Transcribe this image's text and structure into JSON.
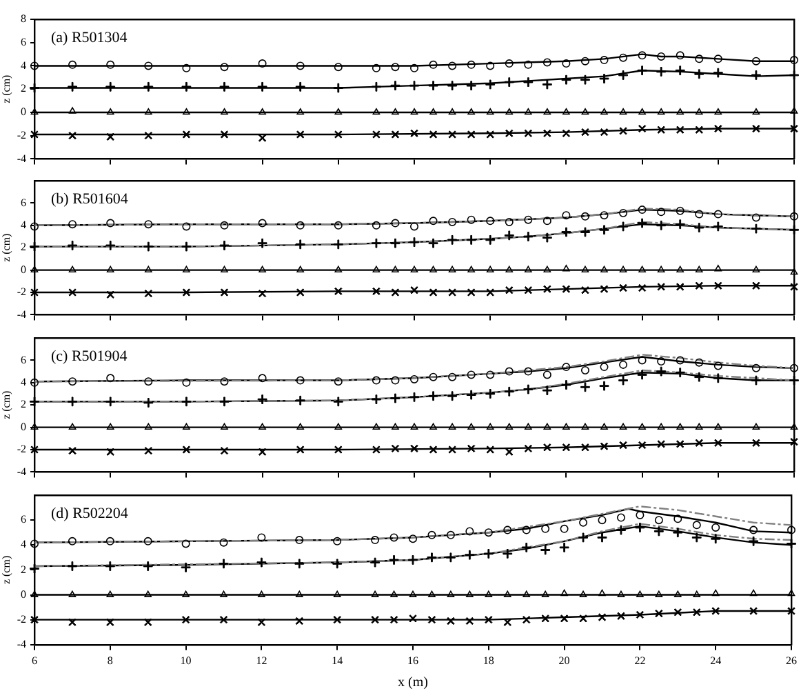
{
  "chart_data": [
    {
      "type": "scatter",
      "title": "(a) R501304",
      "ylabel": "z (cm)",
      "xlim": [
        6,
        26
      ],
      "ylim": [
        -4,
        8
      ],
      "xticks": [
        6,
        8,
        10,
        12,
        14,
        16,
        18,
        20,
        22,
        24,
        26
      ],
      "yticks": [
        -4,
        -2,
        0,
        2,
        4,
        6,
        8
      ],
      "tick_labels": "y",
      "grid": false,
      "legend": false,
      "x": [
        6,
        7,
        8,
        9,
        10,
        11,
        12,
        13,
        14,
        15,
        15.5,
        16,
        16.5,
        17,
        17.5,
        18,
        18.5,
        19,
        19.5,
        20,
        20.5,
        21,
        21.5,
        22,
        22.5,
        23,
        23.5,
        24,
        25,
        26
      ],
      "series": [
        {
          "color": "#000000",
          "marker": "circle",
          "values": [
            4.0,
            4.1,
            4.1,
            4.0,
            3.8,
            3.9,
            4.2,
            4.0,
            3.9,
            3.8,
            3.9,
            3.8,
            4.1,
            4.0,
            4.1,
            4.0,
            4.2,
            4.1,
            4.3,
            4.2,
            4.4,
            4.5,
            4.7,
            4.9,
            4.8,
            4.9,
            4.6,
            4.6,
            4.4,
            4.5
          ]
        },
        {
          "color": "#000000",
          "marker": "cross",
          "values": [
            2.1,
            2.2,
            2.2,
            2.2,
            2.2,
            2.2,
            2.2,
            2.2,
            2.1,
            2.2,
            2.3,
            2.3,
            2.3,
            2.3,
            2.3,
            2.4,
            2.6,
            2.6,
            2.4,
            2.8,
            2.8,
            2.9,
            3.2,
            3.6,
            3.5,
            3.6,
            3.3,
            3.4,
            3.2,
            3.2
          ]
        },
        {
          "color": "#000000",
          "marker": "triangle",
          "values": [
            0,
            0.1,
            0,
            0,
            0,
            0,
            0,
            0,
            0,
            0,
            0,
            0,
            0,
            0,
            0,
            0,
            0,
            0,
            0,
            0,
            0,
            0,
            0,
            0,
            0,
            0,
            0,
            0,
            0,
            0.1
          ]
        },
        {
          "color": "#000000",
          "marker": "x",
          "values": [
            -1.9,
            -2.0,
            -2.1,
            -2.0,
            -1.9,
            -1.9,
            -2.2,
            -1.9,
            -1.9,
            -1.9,
            -1.9,
            -1.8,
            -1.9,
            -1.9,
            -1.9,
            -1.9,
            -1.8,
            -1.8,
            -1.8,
            -1.8,
            -1.7,
            -1.7,
            -1.6,
            -1.4,
            -1.5,
            -1.5,
            -1.5,
            -1.4,
            -1.4,
            -1.4
          ]
        },
        {
          "type": "line",
          "color": "#000000",
          "marker": "none",
          "line_style": "solid",
          "x": [
            6,
            10,
            12,
            14,
            16,
            18,
            20,
            21,
            22,
            22.5,
            23,
            24,
            25,
            26
          ],
          "values": [
            4.0,
            4.0,
            4.0,
            4.0,
            4.0,
            4.2,
            4.4,
            4.6,
            5.0,
            4.8,
            4.8,
            4.6,
            4.4,
            4.4
          ]
        },
        {
          "type": "line",
          "color": "#000000",
          "marker": "none",
          "line_style": "solid",
          "x": [
            6,
            10,
            14,
            15,
            16,
            17,
            18,
            19,
            20,
            21,
            22,
            23,
            24,
            25,
            26
          ],
          "values": [
            2.1,
            2.1,
            2.1,
            2.2,
            2.3,
            2.4,
            2.5,
            2.7,
            2.9,
            3.1,
            3.6,
            3.5,
            3.3,
            3.1,
            3.2
          ]
        },
        {
          "type": "line",
          "color": "#000000",
          "marker": "none",
          "line_style": "solid",
          "x": [
            6,
            26
          ],
          "values": [
            0,
            0
          ]
        },
        {
          "type": "line",
          "color": "#000000",
          "marker": "none",
          "line_style": "solid",
          "x": [
            6,
            10,
            14,
            18,
            20,
            22,
            24,
            26
          ],
          "values": [
            -1.9,
            -1.9,
            -1.9,
            -1.8,
            -1.7,
            -1.5,
            -1.4,
            -1.4
          ]
        }
      ]
    },
    {
      "type": "scatter",
      "title": "(b) R501604",
      "ylabel": "z (cm)",
      "xlim": [
        6,
        26
      ],
      "ylim": [
        -4,
        8
      ],
      "xticks": [
        6,
        8,
        10,
        12,
        14,
        16,
        18,
        20,
        22,
        24,
        26
      ],
      "yticks": [
        -4,
        -2,
        0,
        2,
        4,
        6
      ],
      "tick_labels": "y",
      "grid": false,
      "legend": false,
      "x": [
        6,
        7,
        8,
        9,
        10,
        11,
        12,
        13,
        14,
        15,
        15.5,
        16,
        16.5,
        17,
        17.5,
        18,
        18.5,
        19,
        19.5,
        20,
        20.5,
        21,
        21.5,
        22,
        22.5,
        23,
        23.5,
        24,
        25,
        26
      ],
      "series": [
        {
          "color": "#000000",
          "marker": "circle",
          "values": [
            3.9,
            4.1,
            4.2,
            4.1,
            3.9,
            4.0,
            4.2,
            4.0,
            4.0,
            4.0,
            4.2,
            3.9,
            4.4,
            4.3,
            4.5,
            4.4,
            4.3,
            4.5,
            4.4,
            4.9,
            4.8,
            4.9,
            5.1,
            5.4,
            5.2,
            5.3,
            5.0,
            5.0,
            4.7,
            4.8
          ]
        },
        {
          "color": "#000000",
          "marker": "cross",
          "values": [
            2.1,
            2.2,
            2.2,
            2.1,
            2.1,
            2.2,
            2.4,
            2.3,
            2.3,
            2.4,
            2.4,
            2.5,
            2.4,
            2.7,
            2.7,
            2.7,
            3.1,
            3.0,
            2.9,
            3.4,
            3.4,
            3.6,
            3.9,
            4.2,
            4.0,
            4.1,
            3.8,
            3.9,
            3.7,
            3.6
          ]
        },
        {
          "color": "#000000",
          "marker": "triangle",
          "values": [
            0,
            0,
            0,
            0,
            0,
            0,
            0,
            0,
            0,
            0,
            0,
            0,
            0,
            0,
            0,
            0,
            0,
            0,
            0,
            0.1,
            0,
            0,
            0,
            0,
            0,
            0,
            0,
            0.1,
            0,
            -0.2
          ]
        },
        {
          "color": "#000000",
          "marker": "x",
          "values": [
            -2.0,
            -2.0,
            -2.2,
            -2.1,
            -2.0,
            -2.0,
            -2.1,
            -2.0,
            -1.9,
            -1.9,
            -2.0,
            -1.8,
            -2.0,
            -2.0,
            -2.0,
            -2.0,
            -1.8,
            -1.8,
            -1.7,
            -1.7,
            -1.8,
            -1.7,
            -1.6,
            -1.6,
            -1.5,
            -1.5,
            -1.4,
            -1.4,
            -1.4,
            -1.5
          ]
        },
        {
          "type": "line",
          "color": "#808080",
          "marker": "none",
          "line_style": "dashed",
          "x": [
            6,
            10,
            14,
            16,
            18,
            20,
            21,
            22,
            23,
            24,
            25,
            26
          ],
          "values": [
            4.0,
            4.1,
            4.1,
            4.2,
            4.4,
            4.7,
            5.0,
            5.5,
            5.4,
            5.0,
            4.9,
            4.8
          ]
        },
        {
          "type": "line",
          "color": "#808080",
          "marker": "none",
          "line_style": "dashed",
          "x": [
            6,
            10,
            14,
            16,
            18,
            19,
            20,
            21,
            22,
            23,
            24,
            25,
            26
          ],
          "values": [
            2.1,
            2.1,
            2.3,
            2.5,
            2.8,
            3.0,
            3.3,
            3.7,
            4.3,
            4.1,
            3.8,
            3.7,
            3.6
          ]
        },
        {
          "type": "line",
          "color": "#000000",
          "marker": "none",
          "line_style": "solid",
          "x": [
            6,
            10,
            14,
            16,
            18,
            20,
            21,
            22,
            23,
            24,
            25,
            26
          ],
          "values": [
            4.0,
            4.1,
            4.1,
            4.2,
            4.4,
            4.7,
            5.0,
            5.4,
            5.3,
            5.0,
            4.9,
            4.8
          ]
        },
        {
          "type": "line",
          "color": "#000000",
          "marker": "none",
          "line_style": "solid",
          "x": [
            6,
            10,
            14,
            16,
            18,
            19,
            20,
            21,
            22,
            23,
            24,
            25,
            26
          ],
          "values": [
            2.1,
            2.1,
            2.3,
            2.5,
            2.8,
            3.0,
            3.3,
            3.7,
            4.1,
            4.0,
            3.8,
            3.7,
            3.6
          ]
        },
        {
          "type": "line",
          "color": "#000000",
          "marker": "none",
          "line_style": "solid",
          "x": [
            6,
            26
          ],
          "values": [
            0,
            0
          ]
        },
        {
          "type": "line",
          "color": "#000000",
          "marker": "none",
          "line_style": "solid",
          "x": [
            6,
            10,
            14,
            18,
            20,
            22,
            24,
            26
          ],
          "values": [
            -2.0,
            -2.0,
            -1.9,
            -1.9,
            -1.7,
            -1.5,
            -1.4,
            -1.4
          ]
        }
      ]
    },
    {
      "type": "scatter",
      "title": "(c) R501904",
      "ylabel": "z (cm)",
      "xlim": [
        6,
        26
      ],
      "ylim": [
        -4,
        8
      ],
      "xticks": [
        6,
        8,
        10,
        12,
        14,
        16,
        18,
        20,
        22,
        24,
        26
      ],
      "yticks": [
        -4,
        -2,
        0,
        2,
        4,
        6
      ],
      "tick_labels": "y",
      "grid": false,
      "legend": false,
      "x": [
        6,
        7,
        8,
        9,
        10,
        11,
        12,
        13,
        14,
        15,
        15.5,
        16,
        16.5,
        17,
        17.5,
        18,
        18.5,
        19,
        19.5,
        20,
        20.5,
        21,
        21.5,
        22,
        22.5,
        23,
        23.5,
        24,
        25,
        26
      ],
      "series": [
        {
          "color": "#000000",
          "marker": "circle",
          "values": [
            4.0,
            4.1,
            4.4,
            4.1,
            4.0,
            4.1,
            4.4,
            4.2,
            4.1,
            4.2,
            4.2,
            4.3,
            4.5,
            4.5,
            4.7,
            4.7,
            5.0,
            5.0,
            4.7,
            5.4,
            5.1,
            5.4,
            5.6,
            6.0,
            5.9,
            6.0,
            5.8,
            5.5,
            5.3,
            5.3
          ]
        },
        {
          "color": "#000000",
          "marker": "cross",
          "values": [
            2.3,
            2.3,
            2.3,
            2.2,
            2.3,
            2.3,
            2.5,
            2.4,
            2.3,
            2.5,
            2.6,
            2.7,
            2.8,
            2.8,
            2.9,
            3.0,
            3.2,
            3.4,
            3.3,
            3.8,
            3.6,
            3.7,
            4.2,
            4.7,
            5.0,
            4.9,
            4.5,
            4.4,
            4.2,
            4.2
          ]
        },
        {
          "color": "#000000",
          "marker": "triangle",
          "values": [
            0,
            0,
            0,
            0,
            0,
            0,
            0,
            0,
            0,
            0,
            0,
            0,
            0,
            0,
            0,
            0,
            0,
            0,
            0,
            0,
            0,
            0,
            0,
            0,
            0,
            0,
            0,
            0,
            0,
            0
          ]
        },
        {
          "color": "#000000",
          "marker": "x",
          "values": [
            -2.0,
            -2.1,
            -2.2,
            -2.1,
            -2.0,
            -2.1,
            -2.2,
            -2.0,
            -2.0,
            -2.0,
            -1.9,
            -1.9,
            -2.0,
            -2.0,
            -1.9,
            -2.0,
            -2.2,
            -1.9,
            -1.8,
            -1.8,
            -1.8,
            -1.7,
            -1.6,
            -1.6,
            -1.5,
            -1.5,
            -1.4,
            -1.4,
            -1.4,
            -1.3
          ]
        },
        {
          "type": "line",
          "color": "#808080",
          "marker": "none",
          "line_style": "dashed",
          "x": [
            6,
            14,
            16,
            18,
            20,
            21,
            22,
            23,
            24,
            25,
            26
          ],
          "values": [
            4.1,
            4.2,
            4.4,
            4.8,
            5.4,
            5.9,
            6.5,
            6.2,
            5.8,
            5.5,
            5.3
          ]
        },
        {
          "type": "line",
          "color": "#808080",
          "marker": "none",
          "line_style": "dashed",
          "x": [
            6,
            10,
            14,
            16,
            18,
            19,
            20,
            21,
            22,
            23,
            24,
            25,
            26
          ],
          "values": [
            2.3,
            2.3,
            2.4,
            2.7,
            3.1,
            3.4,
            3.9,
            4.5,
            5.1,
            4.9,
            4.6,
            4.4,
            4.2
          ]
        },
        {
          "type": "line",
          "color": "#000000",
          "marker": "none",
          "line_style": "solid",
          "x": [
            6,
            10,
            14,
            16,
            18,
            19,
            20,
            21,
            22,
            23,
            24,
            25,
            26
          ],
          "values": [
            4.1,
            4.2,
            4.2,
            4.4,
            4.8,
            5.0,
            5.3,
            5.8,
            6.3,
            5.9,
            5.6,
            5.4,
            5.3
          ]
        },
        {
          "type": "line",
          "color": "#000000",
          "marker": "none",
          "line_style": "solid",
          "x": [
            6,
            10,
            14,
            16,
            18,
            19,
            20,
            21,
            22,
            23,
            24,
            25,
            26
          ],
          "values": [
            2.3,
            2.3,
            2.4,
            2.7,
            3.1,
            3.4,
            3.8,
            4.4,
            4.9,
            4.8,
            4.4,
            4.2,
            4.2
          ]
        },
        {
          "type": "line",
          "color": "#000000",
          "marker": "none",
          "line_style": "solid",
          "x": [
            6,
            26
          ],
          "values": [
            0,
            0
          ]
        },
        {
          "type": "line",
          "color": "#000000",
          "marker": "none",
          "line_style": "solid",
          "x": [
            6,
            10,
            14,
            18,
            20,
            22,
            24,
            26
          ],
          "values": [
            -2.0,
            -2.0,
            -2.0,
            -1.9,
            -1.8,
            -1.6,
            -1.4,
            -1.4
          ]
        }
      ]
    },
    {
      "type": "scatter",
      "title": "(d) R502204",
      "xlabel": "x (m)",
      "ylabel": "z (cm)",
      "xlim": [
        6,
        26
      ],
      "ylim": [
        -4,
        8
      ],
      "xticks": [
        6,
        8,
        10,
        12,
        14,
        16,
        18,
        20,
        22,
        24,
        26
      ],
      "yticks": [
        -4,
        -2,
        0,
        2,
        4,
        6
      ],
      "grid": false,
      "legend": false,
      "x": [
        6,
        7,
        8,
        9,
        10,
        11,
        12,
        13,
        14,
        15,
        15.5,
        16,
        16.5,
        17,
        17.5,
        18,
        18.5,
        19,
        19.5,
        20,
        20.5,
        21,
        21.5,
        22,
        22.5,
        23,
        23.5,
        24,
        25,
        26
      ],
      "series": [
        {
          "color": "#000000",
          "marker": "circle",
          "values": [
            4.1,
            4.3,
            4.3,
            4.3,
            4.1,
            4.2,
            4.6,
            4.4,
            4.3,
            4.4,
            4.6,
            4.5,
            4.8,
            4.8,
            5.1,
            5.0,
            5.2,
            5.2,
            5.3,
            5.3,
            5.8,
            6.0,
            6.2,
            6.4,
            6.0,
            6.1,
            5.6,
            5.4,
            5.2,
            5.2
          ]
        },
        {
          "color": "#000000",
          "marker": "cross",
          "values": [
            2.1,
            2.3,
            2.3,
            2.3,
            2.2,
            2.5,
            2.6,
            2.5,
            2.5,
            2.6,
            2.8,
            2.8,
            3.0,
            3.0,
            3.2,
            3.3,
            3.3,
            3.8,
            3.6,
            3.8,
            4.6,
            4.6,
            5.2,
            5.4,
            5.1,
            5.0,
            4.6,
            4.5,
            4.3,
            4.1
          ]
        },
        {
          "color": "#000000",
          "marker": "triangle",
          "values": [
            0,
            0,
            0,
            0,
            0,
            0,
            0,
            0,
            0,
            0,
            0,
            0,
            0,
            0,
            0,
            0,
            0,
            0,
            0,
            0.1,
            0,
            0.1,
            0,
            0,
            0,
            0,
            0,
            0.1,
            0.1,
            0.1
          ]
        },
        {
          "color": "#000000",
          "marker": "x",
          "values": [
            -2.0,
            -2.2,
            -2.2,
            -2.2,
            -2.0,
            -2.0,
            -2.2,
            -2.1,
            -2.0,
            -2.0,
            -2.0,
            -1.9,
            -2.0,
            -2.1,
            -2.1,
            -2.0,
            -2.2,
            -2.0,
            -1.9,
            -1.9,
            -1.9,
            -1.8,
            -1.7,
            -1.6,
            -1.5,
            -1.4,
            -1.4,
            -1.3,
            -1.3,
            -1.3
          ]
        },
        {
          "type": "line",
          "color": "#808080",
          "marker": "none",
          "line_style": "dashed",
          "x": [
            6,
            14,
            16,
            18,
            20,
            21,
            22,
            23,
            24,
            25,
            26
          ],
          "values": [
            4.2,
            4.4,
            4.6,
            5.0,
            5.9,
            6.5,
            7.1,
            6.8,
            6.3,
            5.8,
            5.6
          ]
        },
        {
          "type": "line",
          "color": "#808080",
          "marker": "none",
          "line_style": "dashed",
          "x": [
            6,
            14,
            16,
            18,
            20,
            21,
            22,
            23,
            24,
            25,
            26
          ],
          "values": [
            2.3,
            2.6,
            2.8,
            3.3,
            4.3,
            5.1,
            5.7,
            5.3,
            4.8,
            4.5,
            4.4
          ]
        },
        {
          "type": "line",
          "color": "#000000",
          "marker": "none",
          "line_style": "solid",
          "x": [
            6,
            10,
            14,
            16,
            18,
            19,
            20,
            21,
            21.7,
            22,
            23,
            24,
            25,
            26
          ],
          "values": [
            4.2,
            4.3,
            4.4,
            4.6,
            5.0,
            5.3,
            5.9,
            6.4,
            6.9,
            6.7,
            6.3,
            5.8,
            5.1,
            5.0
          ]
        },
        {
          "type": "line",
          "color": "#000000",
          "marker": "none",
          "line_style": "solid",
          "x": [
            6,
            10,
            14,
            16,
            18,
            19,
            20,
            21,
            22,
            23,
            24,
            25,
            26
          ],
          "values": [
            2.3,
            2.4,
            2.6,
            2.8,
            3.3,
            3.7,
            4.3,
            5.0,
            5.5,
            5.1,
            4.6,
            4.2,
            4.0
          ]
        },
        {
          "type": "line",
          "color": "#000000",
          "marker": "none",
          "line_style": "solid",
          "x": [
            6,
            26
          ],
          "values": [
            0,
            0
          ]
        },
        {
          "type": "line",
          "color": "#000000",
          "marker": "none",
          "line_style": "solid",
          "x": [
            6,
            10,
            14,
            18,
            20,
            22,
            24,
            26
          ],
          "values": [
            -2.0,
            -2.0,
            -2.0,
            -2.0,
            -1.8,
            -1.6,
            -1.3,
            -1.3
          ]
        }
      ]
    }
  ]
}
